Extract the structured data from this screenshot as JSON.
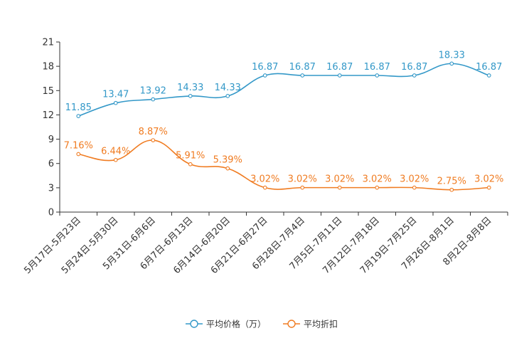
{
  "chart_data": {
    "type": "line",
    "title": "",
    "xlabel": "",
    "ylabel": "",
    "ylim": [
      0,
      21
    ],
    "yticks": [
      0,
      3,
      6,
      9,
      12,
      15,
      18,
      21
    ],
    "categories": [
      "5月17日-5月23日",
      "5月24日-5月30日",
      "5月31日-6月6日",
      "6月7日-6月13日",
      "6月14日-6月20日",
      "6月21日-6月27日",
      "6月28日-7月4日",
      "7月5日-7月11日",
      "7月12日-7月18日",
      "7月19日-7月25日",
      "7月26日-8月1日",
      "8月2日-8月8日"
    ],
    "series": [
      {
        "name": "平均价格（万）",
        "color": "#3398c8",
        "values": [
          11.85,
          13.47,
          13.92,
          14.33,
          14.33,
          16.87,
          16.87,
          16.87,
          16.87,
          16.87,
          18.33,
          16.87
        ],
        "labels": [
          "11.85",
          "13.47",
          "13.92",
          "14.33",
          "14.33",
          "16.87",
          "16.87",
          "16.87",
          "16.87",
          "16.87",
          "18.33",
          "16.87"
        ]
      },
      {
        "name": "平均折扣",
        "color": "#f07c22",
        "values": [
          7.16,
          6.44,
          8.87,
          5.91,
          5.39,
          3.02,
          3.02,
          3.02,
          3.02,
          3.02,
          2.75,
          3.02
        ],
        "labels": [
          "7.16%",
          "6.44%",
          "8.87%",
          "5.91%",
          "5.39%",
          "3.02%",
          "3.02%",
          "3.02%",
          "3.02%",
          "3.02%",
          "2.75%",
          "3.02%"
        ]
      }
    ],
    "legend_position": "bottom-center",
    "grid": false
  }
}
